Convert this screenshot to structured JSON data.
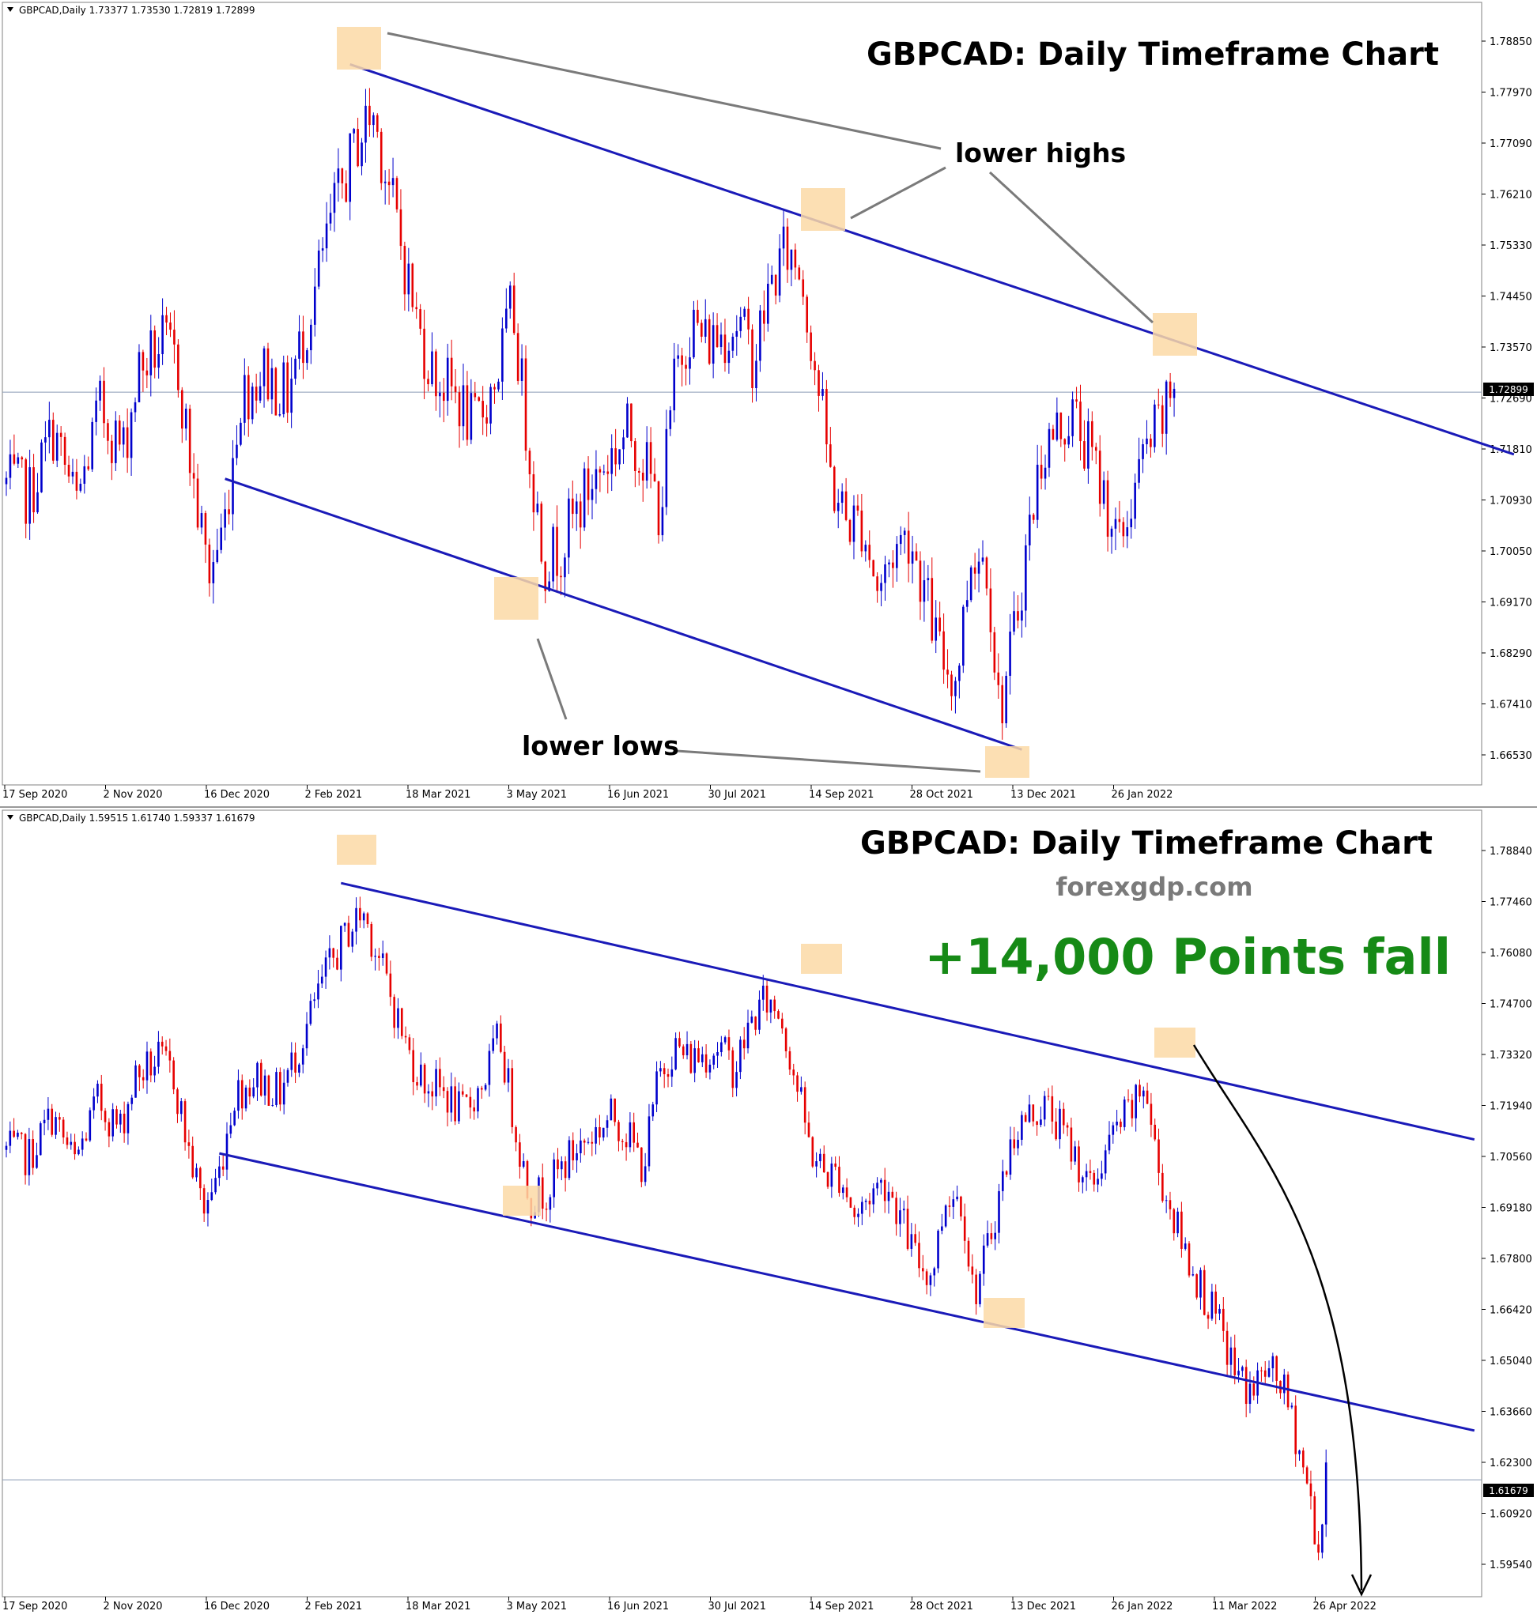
{
  "chart_data": [
    {
      "type": "candlestick",
      "symbol_header": "GBPCAD,Daily",
      "ohlc_header": "1.73377 1.73530 1.72819 1.72899",
      "title": "GBPCAD: Daily Timeframe Chart",
      "current_price": "1.72899",
      "x_dates": [
        "17 Sep 2020",
        "2 Nov 2020",
        "16 Dec 2020",
        "2 Feb 2021",
        "18 Mar 2021",
        "3 May 2021",
        "16 Jun 2021",
        "30 Jul 2021",
        "14 Sep 2021",
        "28 Oct 2021",
        "13 Dec 2021",
        "26 Jan 2022"
      ],
      "y_ticks": [
        "1.78850",
        "1.77970",
        "1.77090",
        "1.76210",
        "1.75330",
        "1.74450",
        "1.73570",
        "1.72690",
        "1.71810",
        "1.70930",
        "1.70050",
        "1.69170",
        "1.68290",
        "1.67410",
        "1.66530"
      ],
      "ylim": [
        1.661,
        1.7938
      ],
      "annotations": [
        "lower highs",
        "lower lows"
      ],
      "colors": {
        "bull": "#0000cc",
        "bear": "#e60000",
        "trendline": "#1a1ab8",
        "highlight": "#fcd9a6",
        "annotation_line": "#7a7a7a"
      },
      "price_path": [
        [
          0,
          1.712
        ],
        [
          0.03,
          1.71
        ],
        [
          0.06,
          1.722
        ],
        [
          0.09,
          1.708
        ],
        [
          0.12,
          1.726
        ],
        [
          0.15,
          1.718
        ],
        [
          0.17,
          1.733
        ],
        [
          0.2,
          1.738
        ],
        [
          0.22,
          1.734
        ],
        [
          0.24,
          1.712
        ],
        [
          0.26,
          1.695
        ],
        [
          0.28,
          1.705
        ],
        [
          0.3,
          1.728
        ],
        [
          0.33,
          1.733
        ],
        [
          0.36,
          1.728
        ],
        [
          0.39,
          1.744
        ],
        [
          0.42,
          1.762
        ],
        [
          0.45,
          1.775
        ],
        [
          0.47,
          1.781
        ],
        [
          0.49,
          1.768
        ],
        [
          0.51,
          1.754
        ],
        [
          0.53,
          1.74
        ],
        [
          0.55,
          1.732
        ],
        [
          0.58,
          1.728
        ],
        [
          0.6,
          1.722
        ],
        [
          0.63,
          1.732
        ],
        [
          0.65,
          1.745
        ],
        [
          0.67,
          1.72
        ],
        [
          0.69,
          1.698
        ],
        [
          0.71,
          1.7
        ],
        [
          0.73,
          1.706
        ],
        [
          0.75,
          1.712
        ],
        [
          0.78,
          1.718
        ],
        [
          0.8,
          1.722
        ],
        [
          0.82,
          1.716
        ],
        [
          0.84,
          1.707
        ],
        [
          0.86,
          1.733
        ],
        [
          0.88,
          1.742
        ],
        [
          0.9,
          1.738
        ],
        [
          0.92,
          1.74
        ],
        [
          0.94,
          1.742
        ],
        [
          0.96,
          1.735
        ],
        [
          0.98,
          1.748
        ],
        [
          1.0,
          1.755
        ],
        [
          1.02,
          1.752
        ],
        [
          1.04,
          1.733
        ],
        [
          1.06,
          1.712
        ],
        [
          1.08,
          1.705
        ],
        [
          1.1,
          1.705
        ],
        [
          1.12,
          1.692
        ],
        [
          1.14,
          1.7
        ],
        [
          1.16,
          1.703
        ],
        [
          1.18,
          1.692
        ],
        [
          1.2,
          1.68
        ],
        [
          1.22,
          1.676
        ],
        [
          1.24,
          1.7
        ],
        [
          1.26,
          1.698
        ],
        [
          1.275,
          1.67
        ],
        [
          1.29,
          1.68
        ],
        [
          1.31,
          1.7
        ],
        [
          1.33,
          1.718
        ],
        [
          1.35,
          1.722
        ],
        [
          1.37,
          1.725
        ],
        [
          1.39,
          1.718
        ],
        [
          1.41,
          1.71
        ],
        [
          1.43,
          1.7
        ],
        [
          1.45,
          1.712
        ],
        [
          1.47,
          1.72
        ],
        [
          1.49,
          1.725
        ],
        [
          1.5,
          1.732
        ]
      ],
      "price_span": 1.5,
      "candle_count": 300,
      "trendlines": [
        {
          "from": [
            0.44,
            1.7895
          ],
          "to": [
            1.93,
            1.7175
          ]
        },
        {
          "from": [
            0.28,
            1.713
          ],
          "to": [
            1.3,
            1.663
          ]
        }
      ]
    },
    {
      "type": "candlestick",
      "symbol_header": "GBPCAD,Daily",
      "ohlc_header": "1.59515 1.61740 1.59337 1.61679",
      "title": "GBPCAD: Daily Timeframe Chart",
      "subtitle": "forexgdp.com",
      "headline": "+14,000 Points fall",
      "current_price": "1.61679",
      "x_dates": [
        "17 Sep 2020",
        "2 Nov 2020",
        "16 Dec 2020",
        "2 Feb 2021",
        "18 Mar 2021",
        "3 May 2021",
        "16 Jun 2021",
        "30 Jul 2021",
        "14 Sep 2021",
        "28 Oct 2021",
        "13 Dec 2021",
        "26 Jan 2022",
        "11 Mar 2022",
        "26 Apr 2022"
      ],
      "y_ticks": [
        "1.78840",
        "1.77460",
        "1.76080",
        "1.74700",
        "1.73320",
        "1.71940",
        "1.70560",
        "1.69180",
        "1.67800",
        "1.66420",
        "1.65040",
        "1.63660",
        "1.62300",
        "1.60920",
        "1.59540"
      ],
      "ylim": [
        1.5908,
        1.7984
      ],
      "colors": {
        "bull": "#0000cc",
        "bear": "#e60000",
        "trendline": "#1a1ab8",
        "highlight": "#fcd9a6",
        "headline": "#168a16",
        "subtitle": "#7a7a7a",
        "arrow": "#000000"
      },
      "price_path": [
        [
          0,
          1.712
        ],
        [
          0.03,
          1.71
        ],
        [
          0.06,
          1.722
        ],
        [
          0.09,
          1.708
        ],
        [
          0.12,
          1.726
        ],
        [
          0.15,
          1.718
        ],
        [
          0.17,
          1.733
        ],
        [
          0.2,
          1.738
        ],
        [
          0.22,
          1.734
        ],
        [
          0.24,
          1.712
        ],
        [
          0.26,
          1.695
        ],
        [
          0.28,
          1.705
        ],
        [
          0.3,
          1.728
        ],
        [
          0.33,
          1.733
        ],
        [
          0.36,
          1.728
        ],
        [
          0.39,
          1.744
        ],
        [
          0.42,
          1.762
        ],
        [
          0.45,
          1.775
        ],
        [
          0.47,
          1.781
        ],
        [
          0.49,
          1.768
        ],
        [
          0.51,
          1.754
        ],
        [
          0.53,
          1.74
        ],
        [
          0.55,
          1.732
        ],
        [
          0.58,
          1.728
        ],
        [
          0.6,
          1.722
        ],
        [
          0.63,
          1.732
        ],
        [
          0.65,
          1.745
        ],
        [
          0.67,
          1.72
        ],
        [
          0.69,
          1.698
        ],
        [
          0.71,
          1.7
        ],
        [
          0.73,
          1.706
        ],
        [
          0.75,
          1.712
        ],
        [
          0.78,
          1.718
        ],
        [
          0.8,
          1.722
        ],
        [
          0.82,
          1.716
        ],
        [
          0.84,
          1.707
        ],
        [
          0.86,
          1.733
        ],
        [
          0.88,
          1.742
        ],
        [
          0.9,
          1.738
        ],
        [
          0.92,
          1.74
        ],
        [
          0.94,
          1.742
        ],
        [
          0.96,
          1.735
        ],
        [
          0.98,
          1.748
        ],
        [
          1.0,
          1.755
        ],
        [
          1.02,
          1.752
        ],
        [
          1.04,
          1.733
        ],
        [
          1.06,
          1.712
        ],
        [
          1.08,
          1.705
        ],
        [
          1.1,
          1.705
        ],
        [
          1.12,
          1.692
        ],
        [
          1.14,
          1.7
        ],
        [
          1.16,
          1.703
        ],
        [
          1.18,
          1.692
        ],
        [
          1.2,
          1.68
        ],
        [
          1.22,
          1.676
        ],
        [
          1.24,
          1.7
        ],
        [
          1.26,
          1.698
        ],
        [
          1.275,
          1.67
        ],
        [
          1.29,
          1.68
        ],
        [
          1.31,
          1.7
        ],
        [
          1.33,
          1.718
        ],
        [
          1.35,
          1.722
        ],
        [
          1.37,
          1.725
        ],
        [
          1.39,
          1.718
        ],
        [
          1.41,
          1.71
        ],
        [
          1.43,
          1.7
        ],
        [
          1.45,
          1.712
        ],
        [
          1.47,
          1.72
        ],
        [
          1.49,
          1.725
        ],
        [
          1.5,
          1.732
        ],
        [
          1.52,
          1.705
        ],
        [
          1.55,
          1.685
        ],
        [
          1.58,
          1.67
        ],
        [
          1.6,
          1.66
        ],
        [
          1.62,
          1.648
        ],
        [
          1.64,
          1.642
        ],
        [
          1.66,
          1.648
        ],
        [
          1.68,
          1.645
        ],
        [
          1.7,
          1.63
        ],
        [
          1.72,
          1.61
        ],
        [
          1.73,
          1.596
        ],
        [
          1.74,
          1.616
        ]
      ],
      "price_span": 1.74,
      "candle_count": 348,
      "trendlines": [
        {
          "from": [
            0.44,
            1.789
          ],
          "to": [
            1.93,
            1.715
          ]
        },
        {
          "from": [
            0.28,
            1.711
          ],
          "to": [
            1.93,
            1.631
          ]
        }
      ]
    }
  ]
}
